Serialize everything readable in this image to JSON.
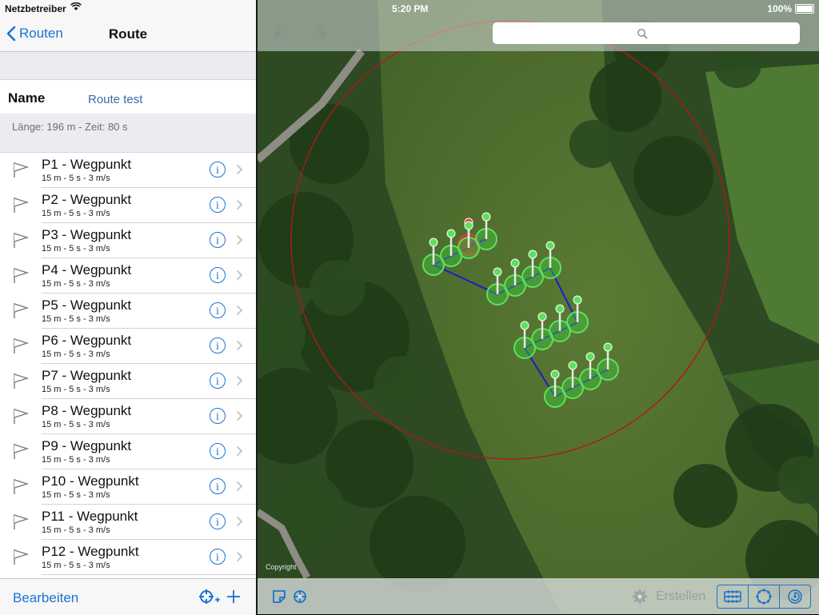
{
  "status_bar": {
    "carrier": "Netzbetreiber",
    "time": "5:20 PM",
    "battery": "100%"
  },
  "nav": {
    "back_label": "Routen",
    "title": "Route"
  },
  "route": {
    "name_label": "Name",
    "name_value": "Route test",
    "summary": "Länge: 196 m - Zeit: 80 s"
  },
  "waypoints": [
    {
      "title": "P1 - Wegpunkt",
      "details": "15 m - 5 s - 3 m/s"
    },
    {
      "title": "P2 - Wegpunkt",
      "details": "15 m - 5 s - 3 m/s"
    },
    {
      "title": "P3 - Wegpunkt",
      "details": "15 m - 5 s - 3 m/s"
    },
    {
      "title": "P4 - Wegpunkt",
      "details": "15 m - 5 s - 3 m/s"
    },
    {
      "title": "P5 - Wegpunkt",
      "details": "15 m - 5 s - 3 m/s"
    },
    {
      "title": "P6 - Wegpunkt",
      "details": "15 m - 5 s - 3 m/s"
    },
    {
      "title": "P7 - Wegpunkt",
      "details": "15 m - 5 s - 3 m/s"
    },
    {
      "title": "P8 - Wegpunkt",
      "details": "15 m - 5 s - 3 m/s"
    },
    {
      "title": "P9 - Wegpunkt",
      "details": "15 m - 5 s - 3 m/s"
    },
    {
      "title": "P10 - Wegpunkt",
      "details": "15 m - 5 s - 3 m/s"
    },
    {
      "title": "P11 - Wegpunkt",
      "details": "15 m - 5 s - 3 m/s"
    },
    {
      "title": "P12 - Wegpunkt",
      "details": "15 m - 5 s - 3 m/s"
    }
  ],
  "left_toolbar": {
    "edit_label": "Bearbeiten"
  },
  "map": {
    "copyright": "Copyright",
    "create_label": "Erstellen",
    "search_placeholder": ""
  },
  "colors": {
    "accent": "#1a73d0",
    "route_line": "#1c1cc8",
    "start_pin": "#e23a3a",
    "waypoint_pin": "#5ee05e",
    "radius_circle": "#b01818"
  },
  "icons": {
    "back": "chevron-left-icon",
    "flag": "flag-icon",
    "info": "info-icon",
    "disclosure": "chevron-right-icon",
    "add_waypoint": "add-waypoint-icon",
    "add": "plus-icon",
    "undo": "undo-icon",
    "redo": "redo-icon",
    "search": "search-icon",
    "note": "note-icon",
    "locate": "crosshair-icon",
    "settings": "gear-icon"
  }
}
